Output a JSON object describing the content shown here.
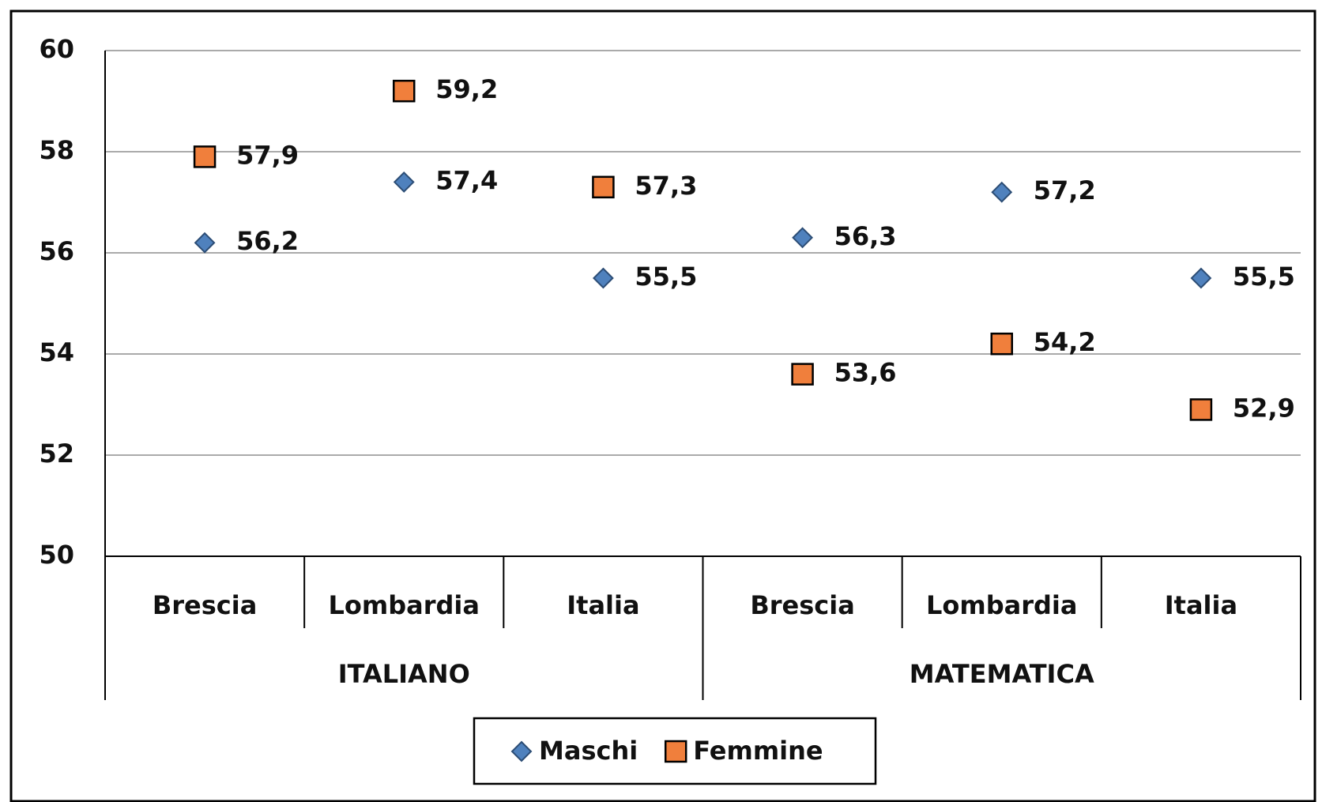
{
  "chart_data": {
    "type": "line",
    "show_lines": false,
    "categories": [
      "Brescia",
      "Lombardia",
      "Italia",
      "Brescia",
      "Lombardia",
      "Italia"
    ],
    "groups": [
      {
        "label": "ITALIANO",
        "count": 3
      },
      {
        "label": "MATEMATICA",
        "count": 3
      }
    ],
    "series": [
      {
        "name": "Maschi",
        "color": "#4f81bd",
        "marker": "diamond",
        "values": [
          56.2,
          57.4,
          55.5,
          56.3,
          57.2,
          55.5
        ],
        "value_labels": [
          "56,2",
          "57,4",
          "55,5",
          "56,3",
          "57,2",
          "55,5"
        ]
      },
      {
        "name": "Femmine",
        "color": "#f07f3c",
        "marker": "square",
        "values": [
          57.9,
          59.2,
          57.3,
          53.6,
          54.2,
          52.9
        ],
        "value_labels": [
          "57,9",
          "59,2",
          "57,3",
          "53,6",
          "54,2",
          "52,9"
        ]
      }
    ],
    "ylim": [
      50,
      60
    ],
    "yticks": [
      50,
      52,
      54,
      56,
      58,
      60
    ],
    "grid": true,
    "legend": "bottom"
  }
}
